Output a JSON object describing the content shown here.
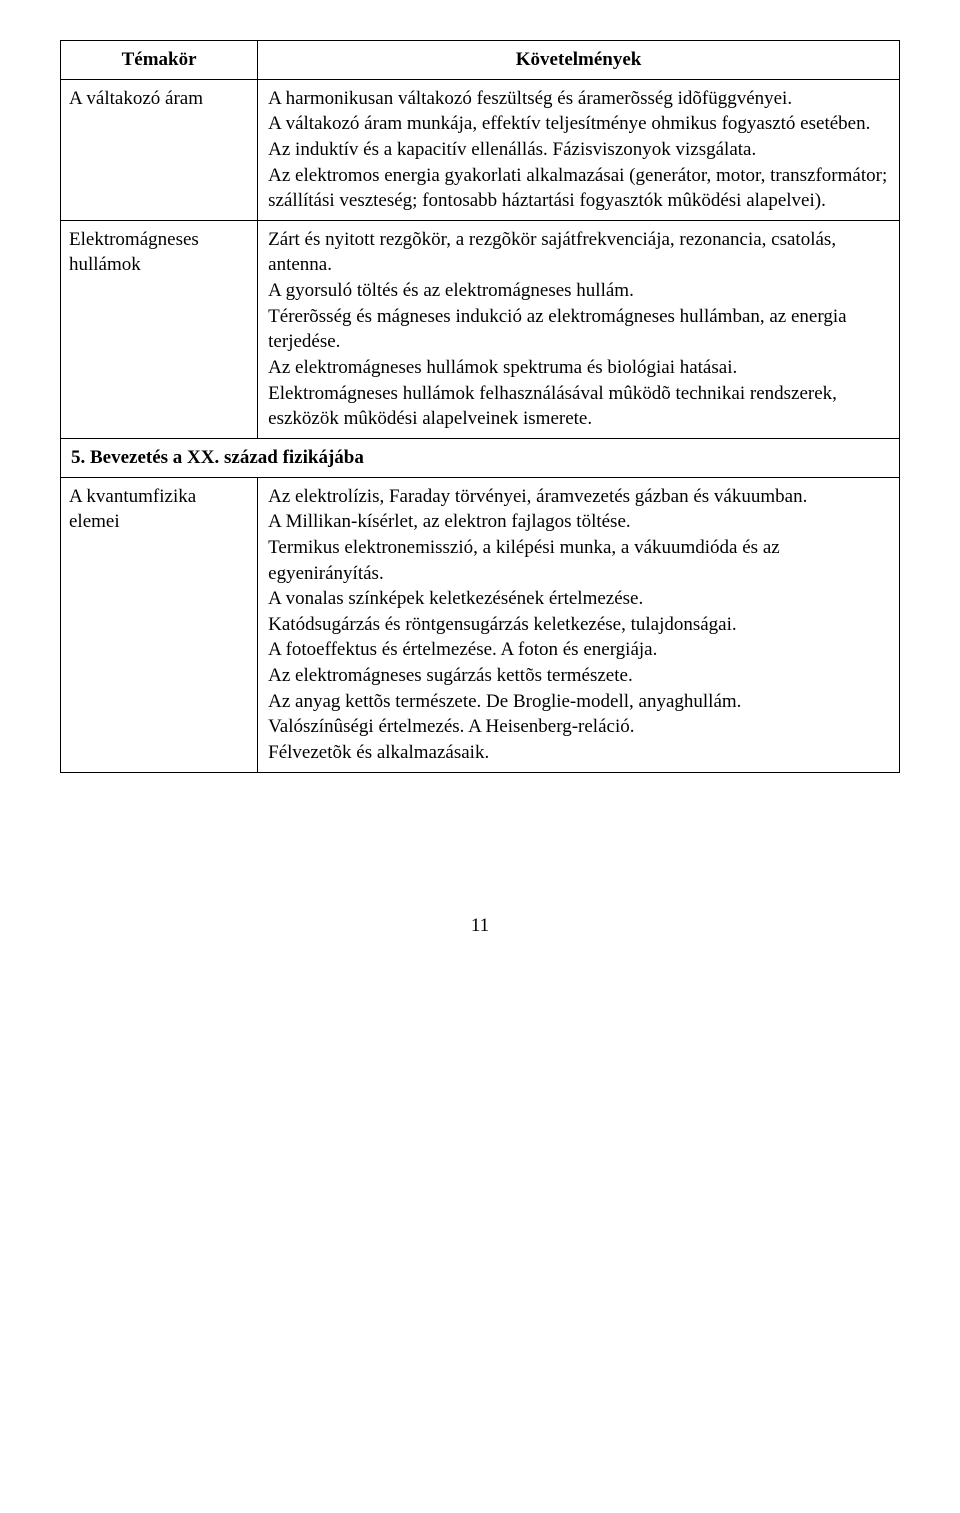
{
  "header": {
    "left": "Témakör",
    "right": "Követelmények"
  },
  "rows": [
    {
      "topic": "A váltakozó áram",
      "req": "A harmonikusan váltakozó feszültség és áramerõsség idõfüggvényei.\nA váltakozó áram munkája, effektív teljesítménye ohmikus fogyasztó esetében.\nAz induktív és a kapacitív ellenállás. Fázisviszonyok vizsgálata.\nAz elektromos energia gyakorlati alkalmazásai (generátor, motor, transzformátor; szállítási veszteség; fontosabb háztartási fogyasztók mûködési alapelvei)."
    },
    {
      "topic": "Elektromágneses hullámok",
      "req": "Zárt és nyitott rezgõkör, a rezgõkör sajátfrekvenciája, rezonancia, csatolás, antenna.\nA gyorsuló töltés és az elektromágneses hullám.\nTérerõsség és mágneses indukció az elektromágneses hullámban, az energia terjedése.\nAz elektromágneses hullámok spektruma és biológiai hatásai.\nElektromágneses hullámok felhasználásával mûködõ technikai rendszerek, eszközök mûködési alapelveinek ismerete."
    }
  ],
  "section_heading": "5. Bevezetés a XX. század fizikájába",
  "section_rows": [
    {
      "topic": "A kvantumfizika elemei",
      "req": "Az elektrolízis, Faraday törvényei, áramvezetés gázban és vákuumban.\nA Millikan-kísérlet, az elektron fajlagos töltése.\nTermikus elektronemisszió, a kilépési munka, a vákuumdióda és az egyenirányítás.\nA vonalas színképek keletkezésének értelmezése.\nKatódsugárzás és röntgensugárzás keletkezése, tulajdonságai.\nA fotoeffektus és értelmezése. A foton és energiája.\nAz elektromágneses sugárzás kettõs természete.\nAz anyag kettõs természete. De Broglie-modell, anyaghullám.\nValószínûségi értelmezés. A Heisenberg-reláció.\nFélvezetõk és alkalmazásaik."
    }
  ],
  "page_number": "11"
}
